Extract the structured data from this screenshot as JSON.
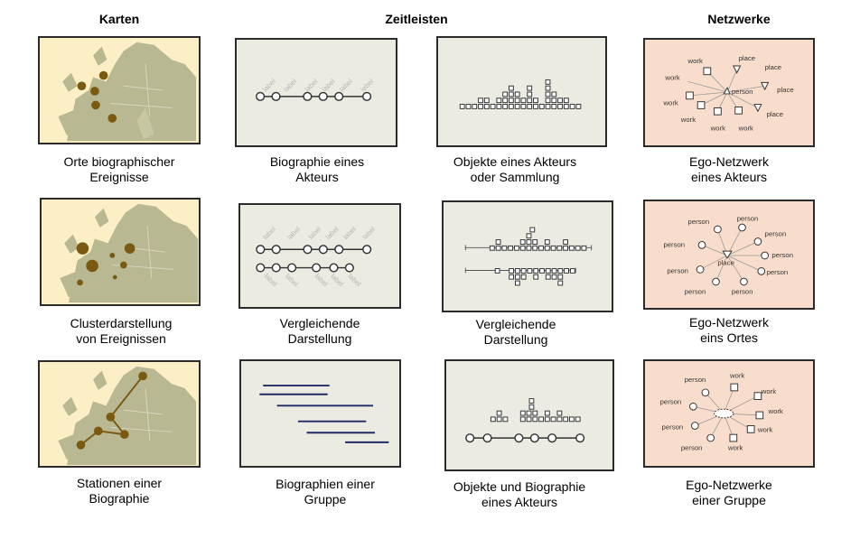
{
  "headers": {
    "maps": "Karten",
    "timelines": "Zeitleisten",
    "networks": "Netzwerke"
  },
  "captions": {
    "r1c1": [
      "Orte biographischer",
      "Ereignisse"
    ],
    "r1c2": [
      "Biographie eines",
      "Akteurs"
    ],
    "r1c3": [
      "Objekte eines Akteurs",
      "oder Sammlung"
    ],
    "r1c4": [
      "Ego-Netzwerk",
      "eines Akteurs"
    ],
    "r2c1": [
      "Clusterdarstellung",
      "von Ereignissen"
    ],
    "r2c2": [
      "Vergleichende",
      "Darstellung"
    ],
    "r2c3": [
      "Vergleichende",
      "Darstellung"
    ],
    "r2c4": [
      "Ego-Netzwerk",
      "eins Ortes"
    ],
    "r3c1": [
      "Stationen einer",
      "Biographie"
    ],
    "r3c2": [
      "Biographien einer",
      "Gruppe"
    ],
    "r3c3": [
      "Objekte und Biographie",
      "eines Akteurs"
    ],
    "r3c4": [
      "Ego-Netzwerke",
      "einer Gruppe"
    ]
  },
  "node_labels": {
    "work": "work",
    "place": "place",
    "person": "person",
    "label": "label"
  },
  "colors": {
    "map_bg": "#fcefc6",
    "land": "#b8b893",
    "marker": "#7a5a10",
    "timeline_bg": "#ecebe1",
    "network_bg": "#f9ddcc",
    "navy": "#1f2a66"
  }
}
